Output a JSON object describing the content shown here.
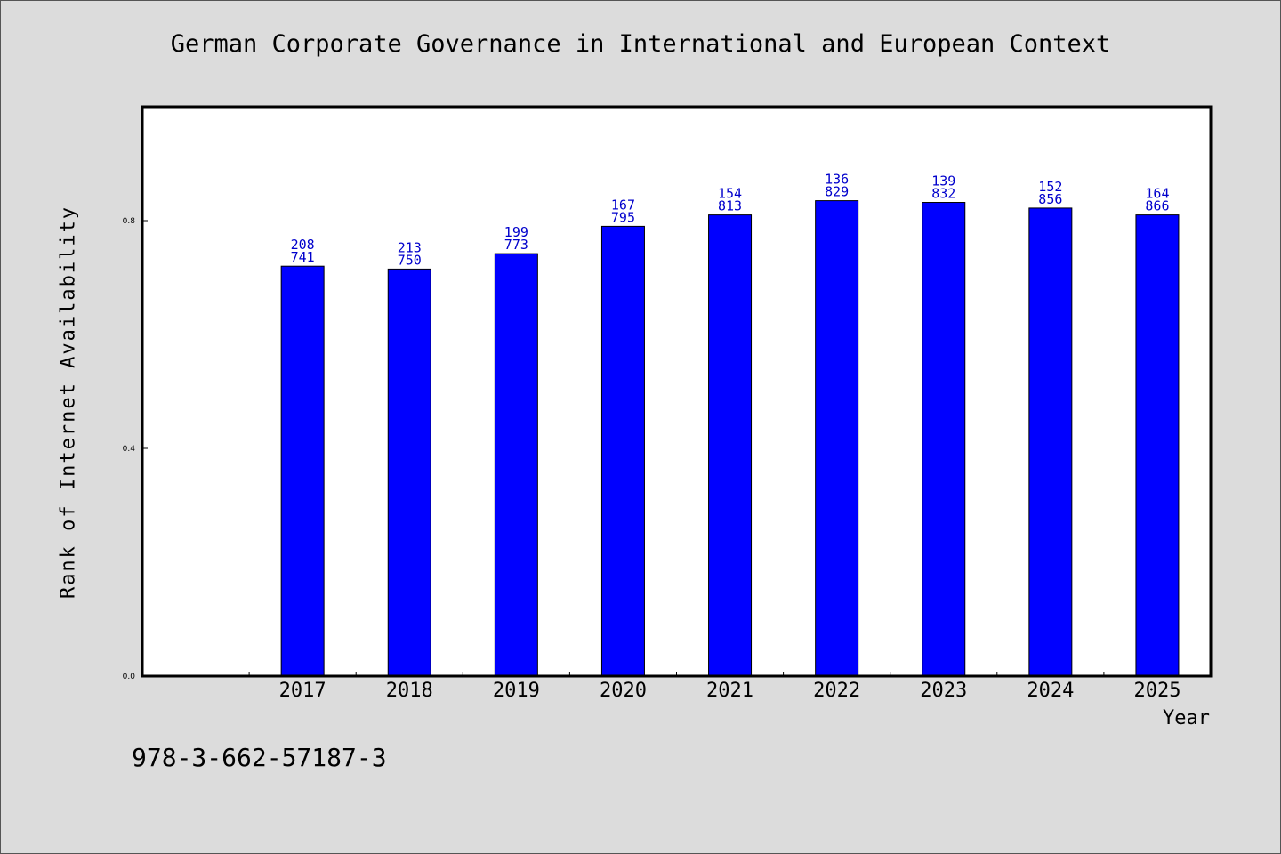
{
  "chart_data": {
    "type": "bar",
    "title": "German Corporate Governance in International and European Context",
    "xlabel": "Year",
    "ylabel": "Rank of Internet Availability",
    "categories": [
      "2017",
      "2018",
      "2019",
      "2020",
      "2021",
      "2022",
      "2023",
      "2024",
      "2025"
    ],
    "values": [
      0.72,
      0.715,
      0.742,
      0.79,
      0.81,
      0.835,
      0.832,
      0.822,
      0.81
    ],
    "data_labels_top": [
      "208",
      "213",
      "199",
      "167",
      "154",
      "136",
      "139",
      "152",
      "164"
    ],
    "data_labels_bottom": [
      "741",
      "750",
      "773",
      "795",
      "813",
      "829",
      "832",
      "856",
      "866"
    ],
    "ylim": [
      0,
      1.0
    ],
    "yticks": [
      0.0,
      0.4,
      0.8
    ],
    "ytick_labels": [
      "0.0",
      "0.4",
      "0.8"
    ],
    "bar_color": "#0000ff",
    "label_color": "#0000cc",
    "grid": false
  },
  "footer": {
    "isbn": "978-3-662-57187-3"
  },
  "colors": {
    "background": "#dcdcdc",
    "plot_background": "#ffffff"
  }
}
